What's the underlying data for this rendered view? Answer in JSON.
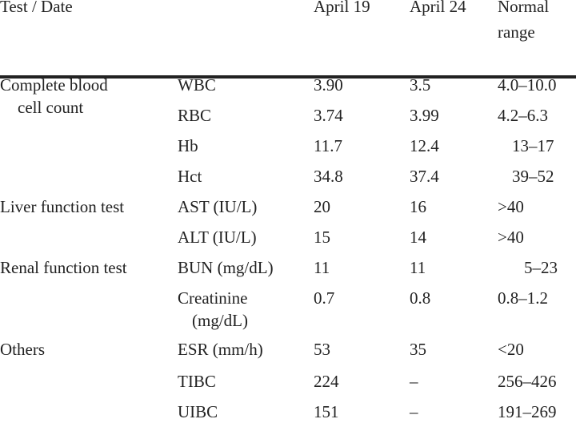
{
  "header": {
    "test_date": "Test / Date",
    "date1": "April 19",
    "date2": "April 24",
    "normal_line1": "Normal",
    "normal_line2": "range"
  },
  "groups": [
    {
      "label_line1": "Complete blood",
      "label_line2": "cell count"
    },
    {
      "label_line1": "Liver function test"
    },
    {
      "label_line1": "Renal function test"
    },
    {
      "label_line1": "Others"
    }
  ],
  "rows": [
    {
      "test": "WBC",
      "d1": "3.90",
      "d2": "3.5",
      "range": "4.0–10.0"
    },
    {
      "test": "RBC",
      "d1": "3.74",
      "d2": "3.99",
      "range": "4.2–6.3"
    },
    {
      "test": "Hb",
      "d1": "11.7",
      "d2": "12.4",
      "range": "13–17"
    },
    {
      "test": "Hct",
      "d1": "34.8",
      "d2": "37.4",
      "range": "39–52"
    },
    {
      "test": "AST (IU/L)",
      "d1": "20",
      "d2": "16",
      "range": ">40"
    },
    {
      "test": "ALT (IU/L)",
      "d1": "15",
      "d2": "14",
      "range": ">40"
    },
    {
      "test": "BUN (mg/dL)",
      "d1": "11",
      "d2": "11",
      "range": "5–23"
    },
    {
      "test": "Creatinine",
      "test_line2": "(mg/dL)",
      "d1": "0.7",
      "d2": "0.8",
      "range": "0.8–1.2"
    },
    {
      "test": "ESR (mm/h)",
      "d1": "53",
      "d2": "35",
      "range": "<20"
    },
    {
      "test": "TIBC",
      "d1": "224",
      "d2": "–",
      "range": "256–426"
    },
    {
      "test": "UIBC",
      "d1": "151",
      "d2": "–",
      "range": "191–269"
    }
  ]
}
